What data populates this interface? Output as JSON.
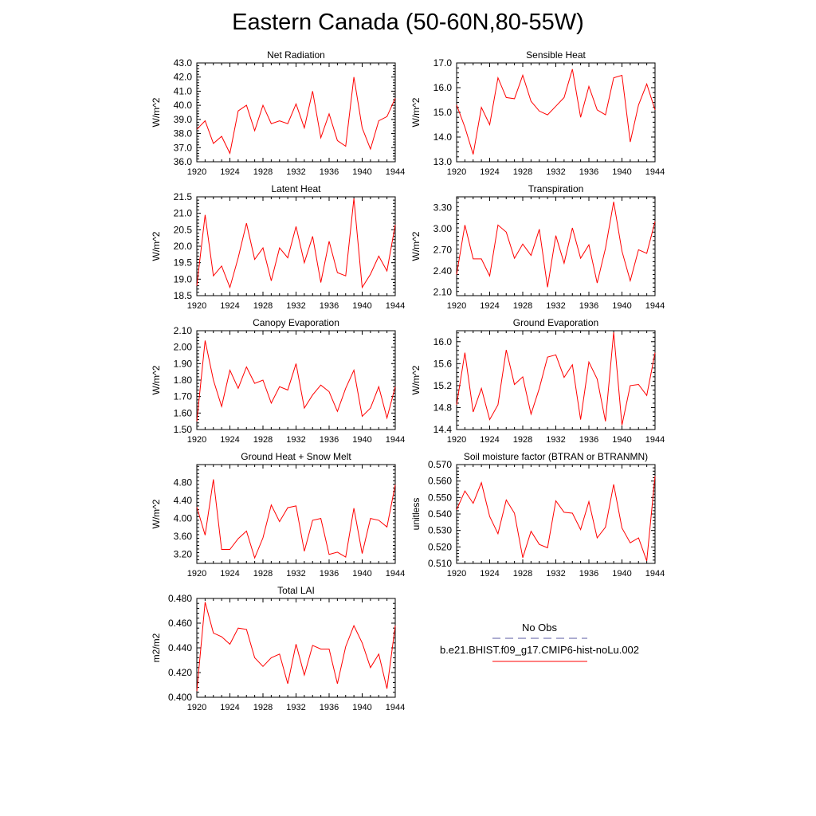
{
  "title": "Eastern Canada (50-60N,80-55W)",
  "colors": {
    "series": "#ff0000",
    "obs": "#5a5aa0",
    "axis": "#000000"
  },
  "legend": {
    "obs_label": "No Obs",
    "model_label": "b.e21.BHIST.f09_g17.CMIP6-hist-noLu.002"
  },
  "chart_data": [
    {
      "type": "line",
      "title": "Net Radiation",
      "ylabel": "W/m^2",
      "xlim": [
        1920,
        1944
      ],
      "ylim": [
        36.0,
        43.0
      ],
      "xticks": [
        1920,
        1924,
        1928,
        1932,
        1936,
        1940,
        1944
      ],
      "yticks": [
        "36.0",
        "37.0",
        "38.0",
        "39.0",
        "40.0",
        "41.0",
        "42.0",
        "43.0"
      ],
      "x": [
        1920,
        1921,
        1922,
        1923,
        1924,
        1925,
        1926,
        1927,
        1928,
        1929,
        1930,
        1931,
        1932,
        1933,
        1934,
        1935,
        1936,
        1937,
        1938,
        1939,
        1940,
        1941,
        1942,
        1943,
        1944
      ],
      "values": [
        38.3,
        38.9,
        37.3,
        37.8,
        36.6,
        39.6,
        40.0,
        38.2,
        40.0,
        38.7,
        38.9,
        38.7,
        40.1,
        38.4,
        41.0,
        37.7,
        39.4,
        37.5,
        37.1,
        42.0,
        38.4,
        36.9,
        38.9,
        39.2,
        40.5
      ]
    },
    {
      "type": "line",
      "title": "Sensible Heat",
      "ylabel": "W/m^2",
      "xlim": [
        1920,
        1944
      ],
      "ylim": [
        13.0,
        17.0
      ],
      "xticks": [
        1920,
        1924,
        1928,
        1932,
        1936,
        1940,
        1944
      ],
      "yticks": [
        "13.0",
        "14.0",
        "15.0",
        "16.0",
        "17.0"
      ],
      "x": [
        1920,
        1921,
        1922,
        1923,
        1924,
        1925,
        1926,
        1927,
        1928,
        1929,
        1930,
        1931,
        1932,
        1933,
        1934,
        1935,
        1936,
        1937,
        1938,
        1939,
        1940,
        1941,
        1942,
        1943,
        1944
      ],
      "values": [
        15.3,
        14.4,
        13.3,
        15.2,
        14.5,
        16.4,
        15.6,
        15.55,
        16.5,
        15.45,
        15.05,
        14.9,
        15.25,
        15.6,
        16.75,
        14.8,
        16.05,
        15.1,
        14.9,
        16.4,
        16.5,
        13.8,
        15.3,
        16.15,
        15.1
      ]
    },
    {
      "type": "line",
      "title": "Latent Heat",
      "ylabel": "W/m^2",
      "xlim": [
        1920,
        1944
      ],
      "ylim": [
        18.5,
        21.5
      ],
      "xticks": [
        1920,
        1924,
        1928,
        1932,
        1936,
        1940,
        1944
      ],
      "yticks": [
        "18.5",
        "19.0",
        "19.5",
        "20.0",
        "20.5",
        "21.0",
        "21.5"
      ],
      "x": [
        1920,
        1921,
        1922,
        1923,
        1924,
        1925,
        1926,
        1927,
        1928,
        1929,
        1930,
        1931,
        1932,
        1933,
        1934,
        1935,
        1936,
        1937,
        1938,
        1939,
        1940,
        1941,
        1942,
        1943,
        1944
      ],
      "values": [
        18.8,
        20.95,
        19.1,
        19.4,
        18.75,
        19.65,
        20.7,
        19.6,
        19.95,
        18.95,
        19.95,
        19.65,
        20.6,
        19.5,
        20.3,
        18.9,
        20.15,
        19.2,
        19.1,
        21.45,
        18.75,
        19.15,
        19.7,
        19.25,
        20.65
      ]
    },
    {
      "type": "line",
      "title": "Transpiration",
      "ylabel": "W/m^2",
      "xlim": [
        1920,
        1944
      ],
      "ylim": [
        2.05,
        3.45
      ],
      "xticks": [
        1920,
        1924,
        1928,
        1932,
        1936,
        1940,
        1944
      ],
      "yticks": [
        "2.10",
        "2.40",
        "2.70",
        "3.00",
        "3.30"
      ],
      "x": [
        1920,
        1921,
        1922,
        1923,
        1924,
        1925,
        1926,
        1927,
        1928,
        1929,
        1930,
        1931,
        1932,
        1933,
        1934,
        1935,
        1936,
        1937,
        1938,
        1939,
        1940,
        1941,
        1942,
        1943,
        1944
      ],
      "values": [
        2.35,
        3.05,
        2.57,
        2.57,
        2.33,
        3.05,
        2.95,
        2.58,
        2.78,
        2.62,
        2.99,
        2.17,
        2.9,
        2.51,
        3.01,
        2.58,
        2.77,
        2.23,
        2.72,
        3.38,
        2.68,
        2.26,
        2.7,
        2.65,
        3.1
      ]
    },
    {
      "type": "line",
      "title": "Canopy Evaporation",
      "ylabel": "W/m^2",
      "xlim": [
        1920,
        1944
      ],
      "ylim": [
        1.5,
        2.1
      ],
      "xticks": [
        1920,
        1924,
        1928,
        1932,
        1936,
        1940,
        1944
      ],
      "yticks": [
        "1.50",
        "1.60",
        "1.70",
        "1.80",
        "1.90",
        "2.00",
        "2.10"
      ],
      "x": [
        1920,
        1921,
        1922,
        1923,
        1924,
        1925,
        1926,
        1927,
        1928,
        1929,
        1930,
        1931,
        1932,
        1933,
        1934,
        1935,
        1936,
        1937,
        1938,
        1939,
        1940,
        1941,
        1942,
        1943,
        1944
      ],
      "values": [
        1.55,
        2.04,
        1.8,
        1.64,
        1.86,
        1.75,
        1.88,
        1.78,
        1.8,
        1.66,
        1.76,
        1.74,
        1.9,
        1.63,
        1.71,
        1.77,
        1.73,
        1.61,
        1.75,
        1.86,
        1.58,
        1.63,
        1.76,
        1.57,
        1.76
      ]
    },
    {
      "type": "line",
      "title": "Ground Evaporation",
      "ylabel": "W/m^2",
      "xlim": [
        1920,
        1944
      ],
      "ylim": [
        14.4,
        16.2
      ],
      "xticks": [
        1920,
        1924,
        1928,
        1932,
        1936,
        1940,
        1944
      ],
      "yticks": [
        "14.4",
        "14.8",
        "15.2",
        "15.6",
        "16.0"
      ],
      "x": [
        1920,
        1921,
        1922,
        1923,
        1924,
        1925,
        1926,
        1927,
        1928,
        1929,
        1930,
        1931,
        1932,
        1933,
        1934,
        1935,
        1936,
        1937,
        1938,
        1939,
        1940,
        1941,
        1942,
        1943,
        1944
      ],
      "values": [
        14.85,
        15.8,
        14.72,
        15.15,
        14.58,
        14.85,
        15.85,
        15.22,
        15.36,
        14.68,
        15.15,
        15.72,
        15.76,
        15.35,
        15.58,
        14.58,
        15.63,
        15.32,
        14.55,
        16.17,
        14.48,
        15.2,
        15.22,
        15.02,
        15.8
      ]
    },
    {
      "type": "line",
      "title": "Ground Heat + Snow Melt",
      "ylabel": "W/m^2",
      "xlim": [
        1920,
        1944
      ],
      "ylim": [
        3.0,
        5.2
      ],
      "xticks": [
        1920,
        1924,
        1928,
        1932,
        1936,
        1940,
        1944
      ],
      "yticks": [
        "3.20",
        "3.60",
        "4.00",
        "4.40",
        "4.80"
      ],
      "x": [
        1920,
        1921,
        1922,
        1923,
        1924,
        1925,
        1926,
        1927,
        1928,
        1929,
        1930,
        1931,
        1932,
        1933,
        1934,
        1935,
        1936,
        1937,
        1938,
        1939,
        1940,
        1941,
        1942,
        1943,
        1944
      ],
      "values": [
        4.25,
        3.63,
        4.87,
        3.31,
        3.31,
        3.55,
        3.72,
        3.12,
        3.57,
        4.3,
        3.93,
        4.24,
        4.28,
        3.27,
        3.96,
        4.0,
        3.2,
        3.25,
        3.14,
        4.23,
        3.22,
        4.0,
        3.96,
        3.81,
        4.75
      ]
    },
    {
      "type": "line",
      "title": "Soil moisture factor (BTRAN or BTRANMN)",
      "ylabel": "unitless",
      "xlim": [
        1920,
        1944
      ],
      "ylim": [
        0.51,
        0.57
      ],
      "xticks": [
        1920,
        1924,
        1928,
        1932,
        1936,
        1940,
        1944
      ],
      "yticks": [
        "0.510",
        "0.520",
        "0.530",
        "0.540",
        "0.550",
        "0.560",
        "0.570"
      ],
      "x": [
        1920,
        1921,
        1922,
        1923,
        1924,
        1925,
        1926,
        1927,
        1928,
        1929,
        1930,
        1931,
        1932,
        1933,
        1934,
        1935,
        1936,
        1937,
        1938,
        1939,
        1940,
        1941,
        1942,
        1943,
        1944
      ],
      "values": [
        0.5425,
        0.554,
        0.5465,
        0.559,
        0.5385,
        0.528,
        0.5485,
        0.5405,
        0.5135,
        0.5295,
        0.5215,
        0.5195,
        0.548,
        0.541,
        0.5405,
        0.5305,
        0.5475,
        0.5255,
        0.532,
        0.558,
        0.5315,
        0.5225,
        0.5255,
        0.5115,
        0.563
      ]
    },
    {
      "type": "line",
      "title": "Total LAI",
      "ylabel": "m2/m2",
      "xlim": [
        1920,
        1944
      ],
      "ylim": [
        0.4,
        0.48
      ],
      "xticks": [
        1920,
        1924,
        1928,
        1932,
        1936,
        1940,
        1944
      ],
      "yticks": [
        "0.400",
        "0.420",
        "0.440",
        "0.460",
        "0.480"
      ],
      "x": [
        1920,
        1921,
        1922,
        1923,
        1924,
        1925,
        1926,
        1927,
        1928,
        1929,
        1930,
        1931,
        1932,
        1933,
        1934,
        1935,
        1936,
        1937,
        1938,
        1939,
        1940,
        1941,
        1942,
        1943,
        1944
      ],
      "values": [
        0.405,
        0.477,
        0.452,
        0.449,
        0.443,
        0.456,
        0.455,
        0.432,
        0.425,
        0.432,
        0.435,
        0.411,
        0.443,
        0.418,
        0.442,
        0.439,
        0.439,
        0.411,
        0.441,
        0.458,
        0.444,
        0.424,
        0.435,
        0.407,
        0.458
      ]
    }
  ]
}
